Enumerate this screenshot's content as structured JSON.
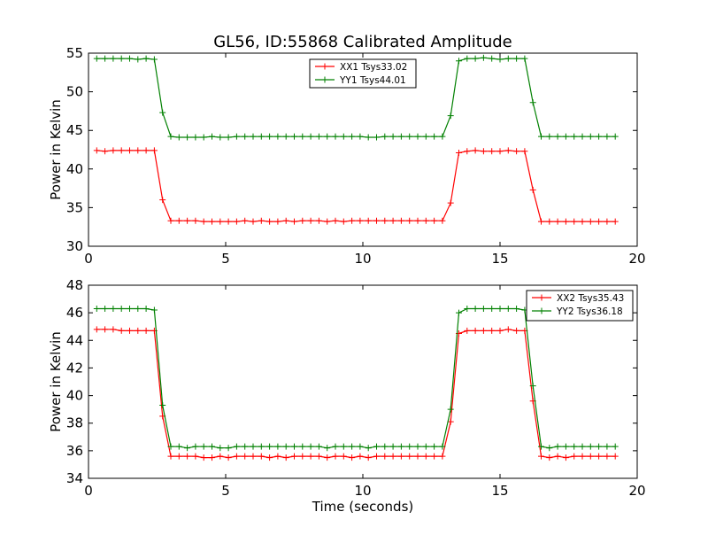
{
  "title": "GL56, ID:55868 Calibrated Amplitude",
  "colors": {
    "red": "#ff0000",
    "green": "#008000",
    "axis": "#000000"
  },
  "chart_data": [
    {
      "type": "line",
      "ylabel": "Power in Kelvin",
      "xlabel": "",
      "xlim": [
        0,
        20
      ],
      "ylim": [
        30,
        55
      ],
      "xticks": [
        0,
        5,
        10,
        15,
        20
      ],
      "yticks": [
        30,
        35,
        40,
        45,
        50,
        55
      ],
      "legend": "top-center",
      "x": [
        0.3,
        0.6,
        0.9,
        1.2,
        1.5,
        1.8,
        2.1,
        2.4,
        2.7,
        3.0,
        3.3,
        3.6,
        3.9,
        4.2,
        4.5,
        4.8,
        5.1,
        5.4,
        5.7,
        6.0,
        6.3,
        6.6,
        6.9,
        7.2,
        7.5,
        7.8,
        8.1,
        8.4,
        8.7,
        9.0,
        9.3,
        9.6,
        9.9,
        10.2,
        10.5,
        10.8,
        11.1,
        11.4,
        11.7,
        12.0,
        12.3,
        12.6,
        12.9,
        13.2,
        13.5,
        13.8,
        14.1,
        14.4,
        14.7,
        15.0,
        15.3,
        15.6,
        15.9,
        16.2,
        16.5,
        16.8,
        17.1,
        17.4,
        17.7,
        18.0,
        18.3,
        18.6,
        18.9,
        19.2
      ],
      "series": [
        {
          "name": "XX1 Tsys33.02",
          "color": "#ff0000",
          "values": [
            42.4,
            42.3,
            42.4,
            42.4,
            42.4,
            42.4,
            42.4,
            42.4,
            36.0,
            33.3,
            33.3,
            33.3,
            33.3,
            33.2,
            33.2,
            33.2,
            33.2,
            33.2,
            33.3,
            33.2,
            33.3,
            33.2,
            33.2,
            33.3,
            33.2,
            33.3,
            33.3,
            33.3,
            33.2,
            33.3,
            33.2,
            33.3,
            33.3,
            33.3,
            33.3,
            33.3,
            33.3,
            33.3,
            33.3,
            33.3,
            33.3,
            33.3,
            33.3,
            35.6,
            42.1,
            42.3,
            42.4,
            42.3,
            42.3,
            42.3,
            42.4,
            42.3,
            42.3,
            37.3,
            33.2,
            33.2,
            33.2,
            33.2,
            33.2,
            33.2,
            33.2,
            33.2,
            33.2,
            33.2
          ]
        },
        {
          "name": "YY1 Tsys44.01",
          "color": "#008000",
          "values": [
            54.3,
            54.3,
            54.3,
            54.3,
            54.3,
            54.2,
            54.3,
            54.2,
            47.3,
            44.2,
            44.1,
            44.1,
            44.1,
            44.1,
            44.2,
            44.1,
            44.1,
            44.2,
            44.2,
            44.2,
            44.2,
            44.2,
            44.2,
            44.2,
            44.2,
            44.2,
            44.2,
            44.2,
            44.2,
            44.2,
            44.2,
            44.2,
            44.2,
            44.1,
            44.1,
            44.2,
            44.2,
            44.2,
            44.2,
            44.2,
            44.2,
            44.2,
            44.2,
            46.9,
            54.0,
            54.3,
            54.3,
            54.4,
            54.3,
            54.2,
            54.3,
            54.3,
            54.3,
            48.6,
            44.2,
            44.2,
            44.2,
            44.2,
            44.2,
            44.2,
            44.2,
            44.2,
            44.2,
            44.2
          ]
        }
      ]
    },
    {
      "type": "line",
      "ylabel": "Power in Kelvin",
      "xlabel": "Time (seconds)",
      "xlim": [
        0,
        20
      ],
      "ylim": [
        34,
        48
      ],
      "xticks": [
        0,
        5,
        10,
        15,
        20
      ],
      "yticks": [
        34,
        36,
        38,
        40,
        42,
        44,
        46,
        48
      ],
      "legend": "top-right",
      "x": [
        0.3,
        0.6,
        0.9,
        1.2,
        1.5,
        1.8,
        2.1,
        2.4,
        2.7,
        3.0,
        3.3,
        3.6,
        3.9,
        4.2,
        4.5,
        4.8,
        5.1,
        5.4,
        5.7,
        6.0,
        6.3,
        6.6,
        6.9,
        7.2,
        7.5,
        7.8,
        8.1,
        8.4,
        8.7,
        9.0,
        9.3,
        9.6,
        9.9,
        10.2,
        10.5,
        10.8,
        11.1,
        11.4,
        11.7,
        12.0,
        12.3,
        12.6,
        12.9,
        13.2,
        13.5,
        13.8,
        14.1,
        14.4,
        14.7,
        15.0,
        15.3,
        15.6,
        15.9,
        16.2,
        16.5,
        16.8,
        17.1,
        17.4,
        17.7,
        18.0,
        18.3,
        18.6,
        18.9,
        19.2
      ],
      "series": [
        {
          "name": "XX2 Tsys35.43",
          "color": "#ff0000",
          "values": [
            44.8,
            44.8,
            44.8,
            44.7,
            44.7,
            44.7,
            44.7,
            44.7,
            38.5,
            35.6,
            35.6,
            35.6,
            35.6,
            35.5,
            35.5,
            35.6,
            35.5,
            35.6,
            35.6,
            35.6,
            35.6,
            35.5,
            35.6,
            35.5,
            35.6,
            35.6,
            35.6,
            35.6,
            35.5,
            35.6,
            35.6,
            35.5,
            35.6,
            35.5,
            35.6,
            35.6,
            35.6,
            35.6,
            35.6,
            35.6,
            35.6,
            35.6,
            35.6,
            38.1,
            44.5,
            44.7,
            44.7,
            44.7,
            44.7,
            44.7,
            44.8,
            44.7,
            44.7,
            39.6,
            35.6,
            35.5,
            35.6,
            35.5,
            35.6,
            35.6,
            35.6,
            35.6,
            35.6,
            35.6
          ]
        },
        {
          "name": "YY2 Tsys36.18",
          "color": "#008000",
          "values": [
            46.3,
            46.3,
            46.3,
            46.3,
            46.3,
            46.3,
            46.3,
            46.2,
            39.3,
            36.3,
            36.3,
            36.2,
            36.3,
            36.3,
            36.3,
            36.2,
            36.2,
            36.3,
            36.3,
            36.3,
            36.3,
            36.3,
            36.3,
            36.3,
            36.3,
            36.3,
            36.3,
            36.3,
            36.2,
            36.3,
            36.3,
            36.3,
            36.3,
            36.2,
            36.3,
            36.3,
            36.3,
            36.3,
            36.3,
            36.3,
            36.3,
            36.3,
            36.3,
            39.0,
            46.0,
            46.3,
            46.3,
            46.3,
            46.3,
            46.3,
            46.3,
            46.3,
            46.2,
            40.7,
            36.3,
            36.2,
            36.3,
            36.3,
            36.3,
            36.3,
            36.3,
            36.3,
            36.3,
            36.3
          ]
        }
      ]
    }
  ]
}
